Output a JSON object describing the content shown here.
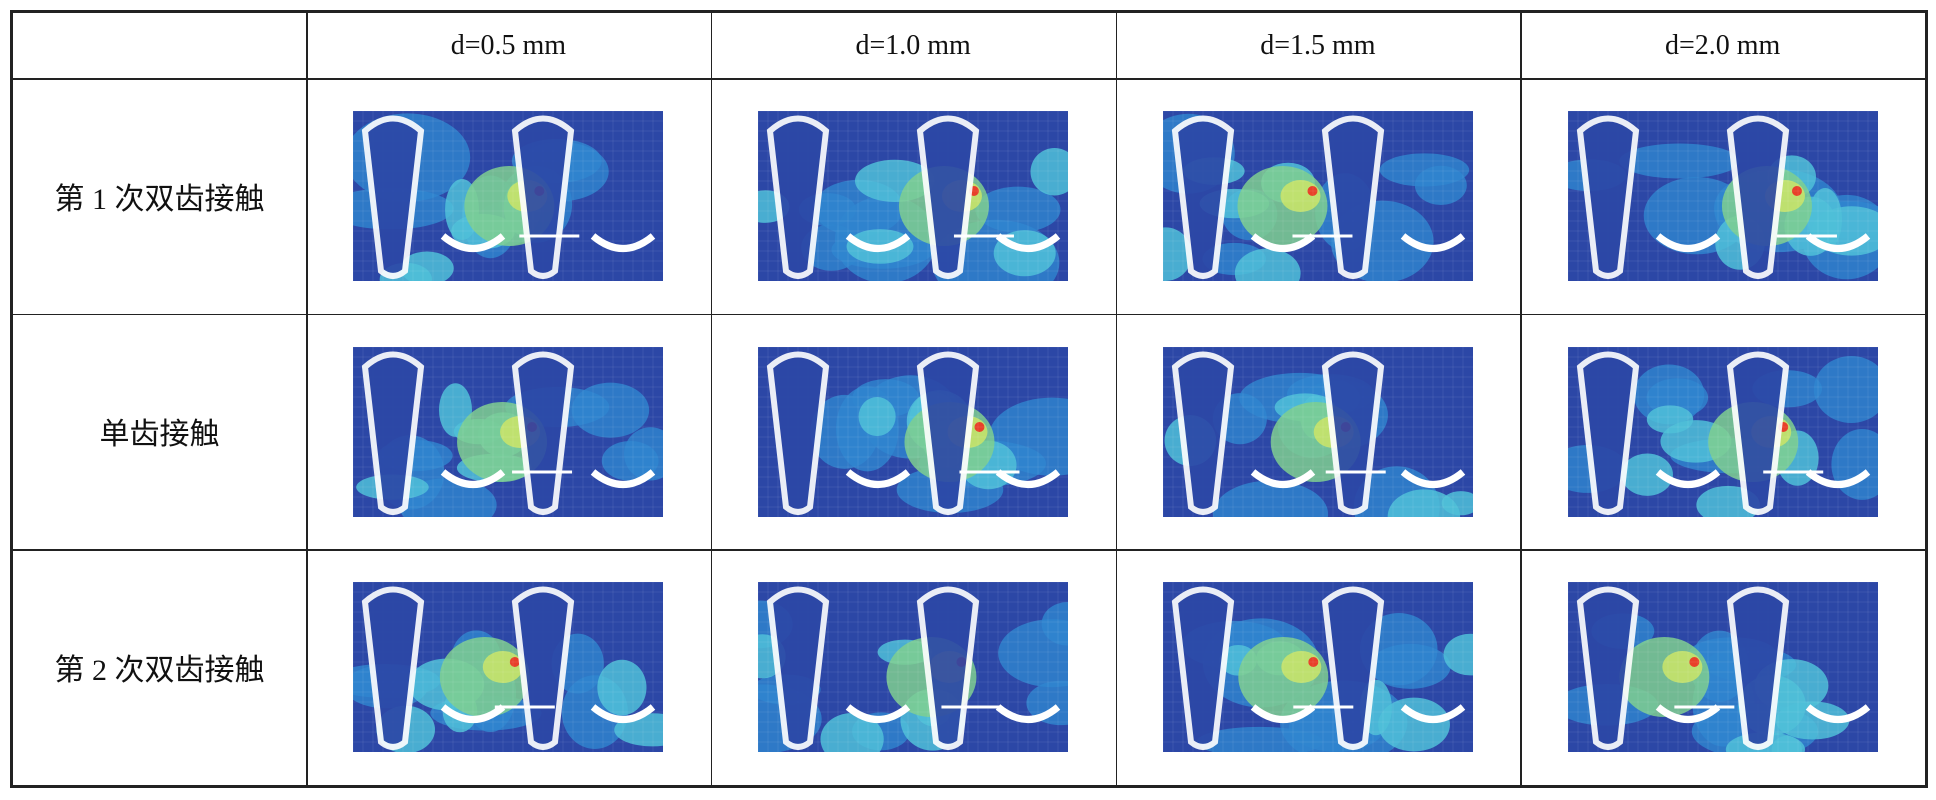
{
  "table": {
    "columns": [
      "d=0.5 mm",
      "d=1.0 mm",
      "d=1.5 mm",
      "d=2.0 mm"
    ],
    "rows": [
      "第 1 次双齿接触",
      "单齿接触",
      "第 2 次双齿接触"
    ]
  }
}
